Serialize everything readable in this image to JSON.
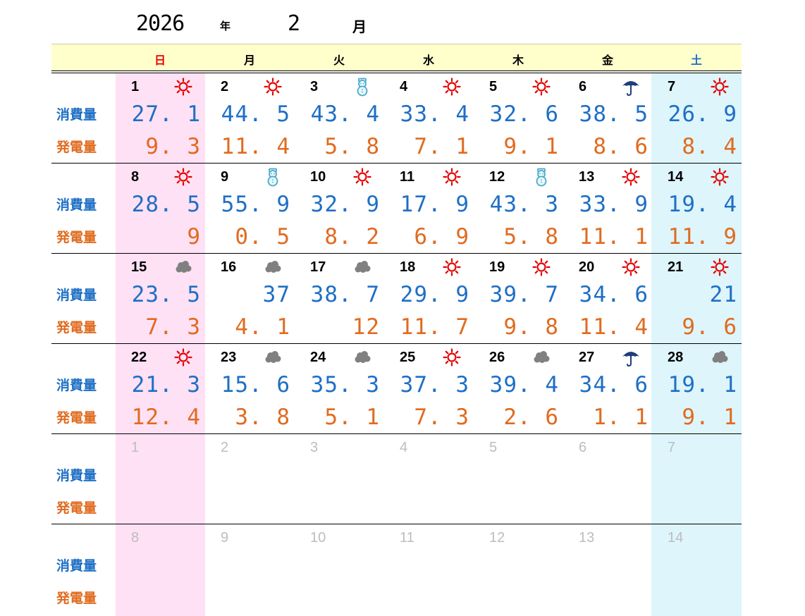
{
  "title": {
    "year": "2026",
    "year_unit": "年",
    "month": "2",
    "month_unit": "月"
  },
  "weekdays": [
    "日",
    "月",
    "火",
    "水",
    "木",
    "金",
    "土"
  ],
  "labels": {
    "usage": "消費量",
    "generation": "発電量"
  },
  "colors": {
    "usage": "#1f6fc5",
    "generation": "#e06b1f",
    "sunday": "#e60000",
    "saturday": "#1f6fc5",
    "header": "#ffffcc"
  },
  "weeks": [
    [
      {
        "day": "1",
        "weather": "sun",
        "usage": "27.1",
        "gen": "9.3"
      },
      {
        "day": "2",
        "weather": "sun",
        "usage": "44.5",
        "gen": "11.4"
      },
      {
        "day": "3",
        "weather": "snow",
        "usage": "43.4",
        "gen": "5.8"
      },
      {
        "day": "4",
        "weather": "sun",
        "usage": "33.4",
        "gen": "7.1"
      },
      {
        "day": "5",
        "weather": "sun",
        "usage": "32.6",
        "gen": "9.1"
      },
      {
        "day": "6",
        "weather": "rain",
        "usage": "38.5",
        "gen": "8.6"
      },
      {
        "day": "7",
        "weather": "sun",
        "usage": "26.9",
        "gen": "8.4"
      }
    ],
    [
      {
        "day": "8",
        "weather": "sun",
        "usage": "28.5",
        "gen": "9"
      },
      {
        "day": "9",
        "weather": "snow",
        "usage": "55.9",
        "gen": "0.5"
      },
      {
        "day": "10",
        "weather": "sun",
        "usage": "32.9",
        "gen": "8.2"
      },
      {
        "day": "11",
        "weather": "sun",
        "usage": "17.9",
        "gen": "6.9"
      },
      {
        "day": "12",
        "weather": "snow",
        "usage": "43.3",
        "gen": "5.8"
      },
      {
        "day": "13",
        "weather": "sun",
        "usage": "33.9",
        "gen": "11.1"
      },
      {
        "day": "14",
        "weather": "sun",
        "usage": "19.4",
        "gen": "11.9"
      }
    ],
    [
      {
        "day": "15",
        "weather": "cloud",
        "usage": "23.5",
        "gen": "7.3"
      },
      {
        "day": "16",
        "weather": "cloud",
        "usage": "37",
        "gen": "4.1"
      },
      {
        "day": "17",
        "weather": "cloud",
        "usage": "38.7",
        "gen": "12"
      },
      {
        "day": "18",
        "weather": "sun",
        "usage": "29.9",
        "gen": "11.7"
      },
      {
        "day": "19",
        "weather": "sun",
        "usage": "39.7",
        "gen": "9.8"
      },
      {
        "day": "20",
        "weather": "sun",
        "usage": "34.6",
        "gen": "11.4"
      },
      {
        "day": "21",
        "weather": "sun",
        "usage": "21",
        "gen": "9.6"
      }
    ],
    [
      {
        "day": "22",
        "weather": "sun",
        "usage": "21.3",
        "gen": "12.4"
      },
      {
        "day": "23",
        "weather": "cloud",
        "usage": "15.6",
        "gen": "3.8"
      },
      {
        "day": "24",
        "weather": "cloud",
        "usage": "35.3",
        "gen": "5.1"
      },
      {
        "day": "25",
        "weather": "sun",
        "usage": "37.3",
        "gen": "7.3"
      },
      {
        "day": "26",
        "weather": "cloud",
        "usage": "39.4",
        "gen": "2.6"
      },
      {
        "day": "27",
        "weather": "rain",
        "usage": "34.6",
        "gen": "1.1"
      },
      {
        "day": "28",
        "weather": "cloud",
        "usage": "19.1",
        "gen": "9.1"
      }
    ],
    [
      {
        "day": "1",
        "other": true
      },
      {
        "day": "2",
        "other": true
      },
      {
        "day": "3",
        "other": true
      },
      {
        "day": "4",
        "other": true
      },
      {
        "day": "5",
        "other": true
      },
      {
        "day": "6",
        "other": true
      },
      {
        "day": "7",
        "other": true
      }
    ],
    [
      {
        "day": "8",
        "other": true
      },
      {
        "day": "9",
        "other": true
      },
      {
        "day": "10",
        "other": true
      },
      {
        "day": "11",
        "other": true
      },
      {
        "day": "12",
        "other": true
      },
      {
        "day": "13",
        "other": true
      },
      {
        "day": "14",
        "other": true
      }
    ]
  ]
}
